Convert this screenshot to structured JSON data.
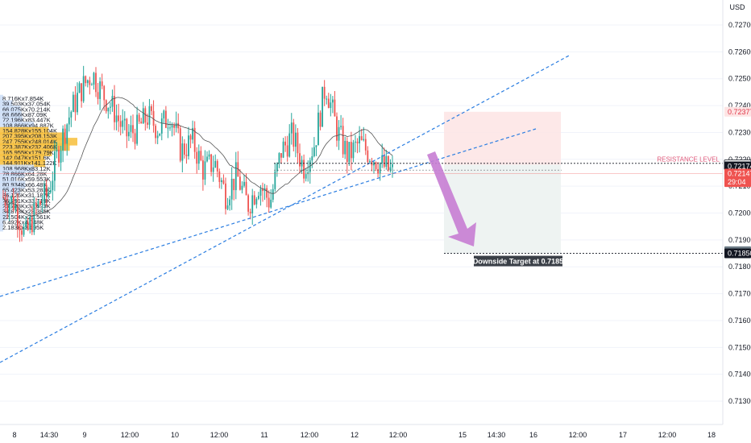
{
  "currency_label": "USD",
  "colors": {
    "up": "#26a69a",
    "down": "#ef5350",
    "trend_line": "#2a7de1",
    "ma_line": "#555555",
    "target_zone": "#eef3f2",
    "stop_zone": "#fde4e4",
    "arrow": "#c77dd3",
    "resistance": "#e05a7a",
    "vp_bar": "#f7c245",
    "vp_bar_alt": "#cfe0f7"
  },
  "annotations": {
    "resistance_label": "RESISTANCE LEVEL",
    "target_label": "Downside Target at 0.7185"
  },
  "price_badges": [
    {
      "label": "0.72377",
      "value": 0.72377,
      "bg": "#fde4e4",
      "fg": "#e0384a"
    },
    {
      "label": "0.72180",
      "value": 0.7218,
      "bg": "#ffffff",
      "fg": "#131722",
      "border": "#131722"
    },
    {
      "label": "0.72174",
      "value": 0.72174,
      "bg": "#131722",
      "fg": "#ffffff"
    },
    {
      "label": "0.72147",
      "value": 0.72147,
      "bg": "#ef5350",
      "fg": "#ffffff"
    },
    {
      "label": "29:04",
      "value": 0.72115,
      "bg": "#ef5350",
      "fg": "#ffffff"
    },
    {
      "label": "0.71858",
      "value": 0.71858,
      "bg": "#6e7d88",
      "fg": "#ffffff"
    },
    {
      "label": "0.71850",
      "value": 0.7185,
      "bg": "#131722",
      "fg": "#ffffff"
    }
  ],
  "volume_profile": [
    {
      "label": "8.716Kx7.854K",
      "price": 0.72425
    },
    {
      "label": "39.503Kx37.054K",
      "price": 0.72405
    },
    {
      "label": "66.075Kx70.214K",
      "price": 0.72385
    },
    {
      "label": "68.666Kx87.09K",
      "price": 0.72365
    },
    {
      "label": "72.196Kx83.447K",
      "price": 0.72345
    },
    {
      "label": "108.866Kx94.887K",
      "price": 0.72325
    },
    {
      "label": "154.828Kx155.104K",
      "price": 0.72305
    },
    {
      "label": "207.395Kx208.153K",
      "price": 0.72285
    },
    {
      "label": "247.755Kx248.014K",
      "price": 0.72265
    },
    {
      "label": "223.387Kx232.406K",
      "price": 0.72245
    },
    {
      "label": "165.955Kx179.79K",
      "price": 0.72225
    },
    {
      "label": "142.047Kx151.6K",
      "price": 0.72205
    },
    {
      "label": "144.911Kx141.122K",
      "price": 0.72185
    },
    {
      "label": "108.968Kx83.12K",
      "price": 0.72165
    },
    {
      "label": "78.866Kx64.28K",
      "price": 0.72145
    },
    {
      "label": "51.016Kx59.553K",
      "price": 0.72125
    },
    {
      "label": "80.934Kx66.48K",
      "price": 0.72105
    },
    {
      "label": "65.423Kx53.283K",
      "price": 0.72085
    },
    {
      "label": "36.126Kx31.187K",
      "price": 0.72065
    },
    {
      "label": "26.791Kx33.719K",
      "price": 0.72045
    },
    {
      "label": "23.783Kx33.693K",
      "price": 0.72025
    },
    {
      "label": "34.873Kx28.385K",
      "price": 0.72005
    },
    {
      "label": "22.504Kx20.561K",
      "price": 0.71985
    },
    {
      "label": "6.492Kx4.048K",
      "price": 0.71965
    },
    {
      "label": "2.183Kx3.195K",
      "price": 0.71945
    }
  ],
  "chart_data": {
    "type": "candlestick",
    "title": "",
    "x_ticks": [
      "8",
      "14:30",
      "9",
      "12:00",
      "10",
      "12:00",
      "11",
      "12:00",
      "12",
      "12:00",
      "15",
      "14:30",
      "16",
      "12:00",
      "17",
      "12:00",
      "18"
    ],
    "y_ticks": [
      "0.72700",
      "0.72600",
      "0.72500",
      "0.72400",
      "0.72300",
      "0.72200",
      "0.72100",
      "0.72000",
      "0.71900",
      "0.71800",
      "0.71700",
      "0.71600",
      "0.71500",
      "0.71400",
      "0.71300"
    ],
    "y_range": [
      0.7122,
      0.7277
    ],
    "resistance_level": 0.7218,
    "current_price": 0.72147,
    "target_price": 0.7185,
    "stop_level": 0.72377,
    "close_path": [
      0.7206,
      0.7204,
      0.7191,
      0.7202,
      0.7207,
      0.7224,
      0.7237,
      0.7246,
      0.7252,
      0.7244,
      0.7238,
      0.7229,
      0.7231,
      0.7236,
      0.7231,
      0.7237,
      0.7223,
      0.7227,
      0.7216,
      0.7219,
      0.7207,
      0.7214,
      0.7203,
      0.7211,
      0.7204,
      0.7223,
      0.7229,
      0.7217,
      0.7226,
      0.7248,
      0.7231,
      0.7221,
      0.7226,
      0.7222,
      0.7218,
      0.7215
    ]
  }
}
